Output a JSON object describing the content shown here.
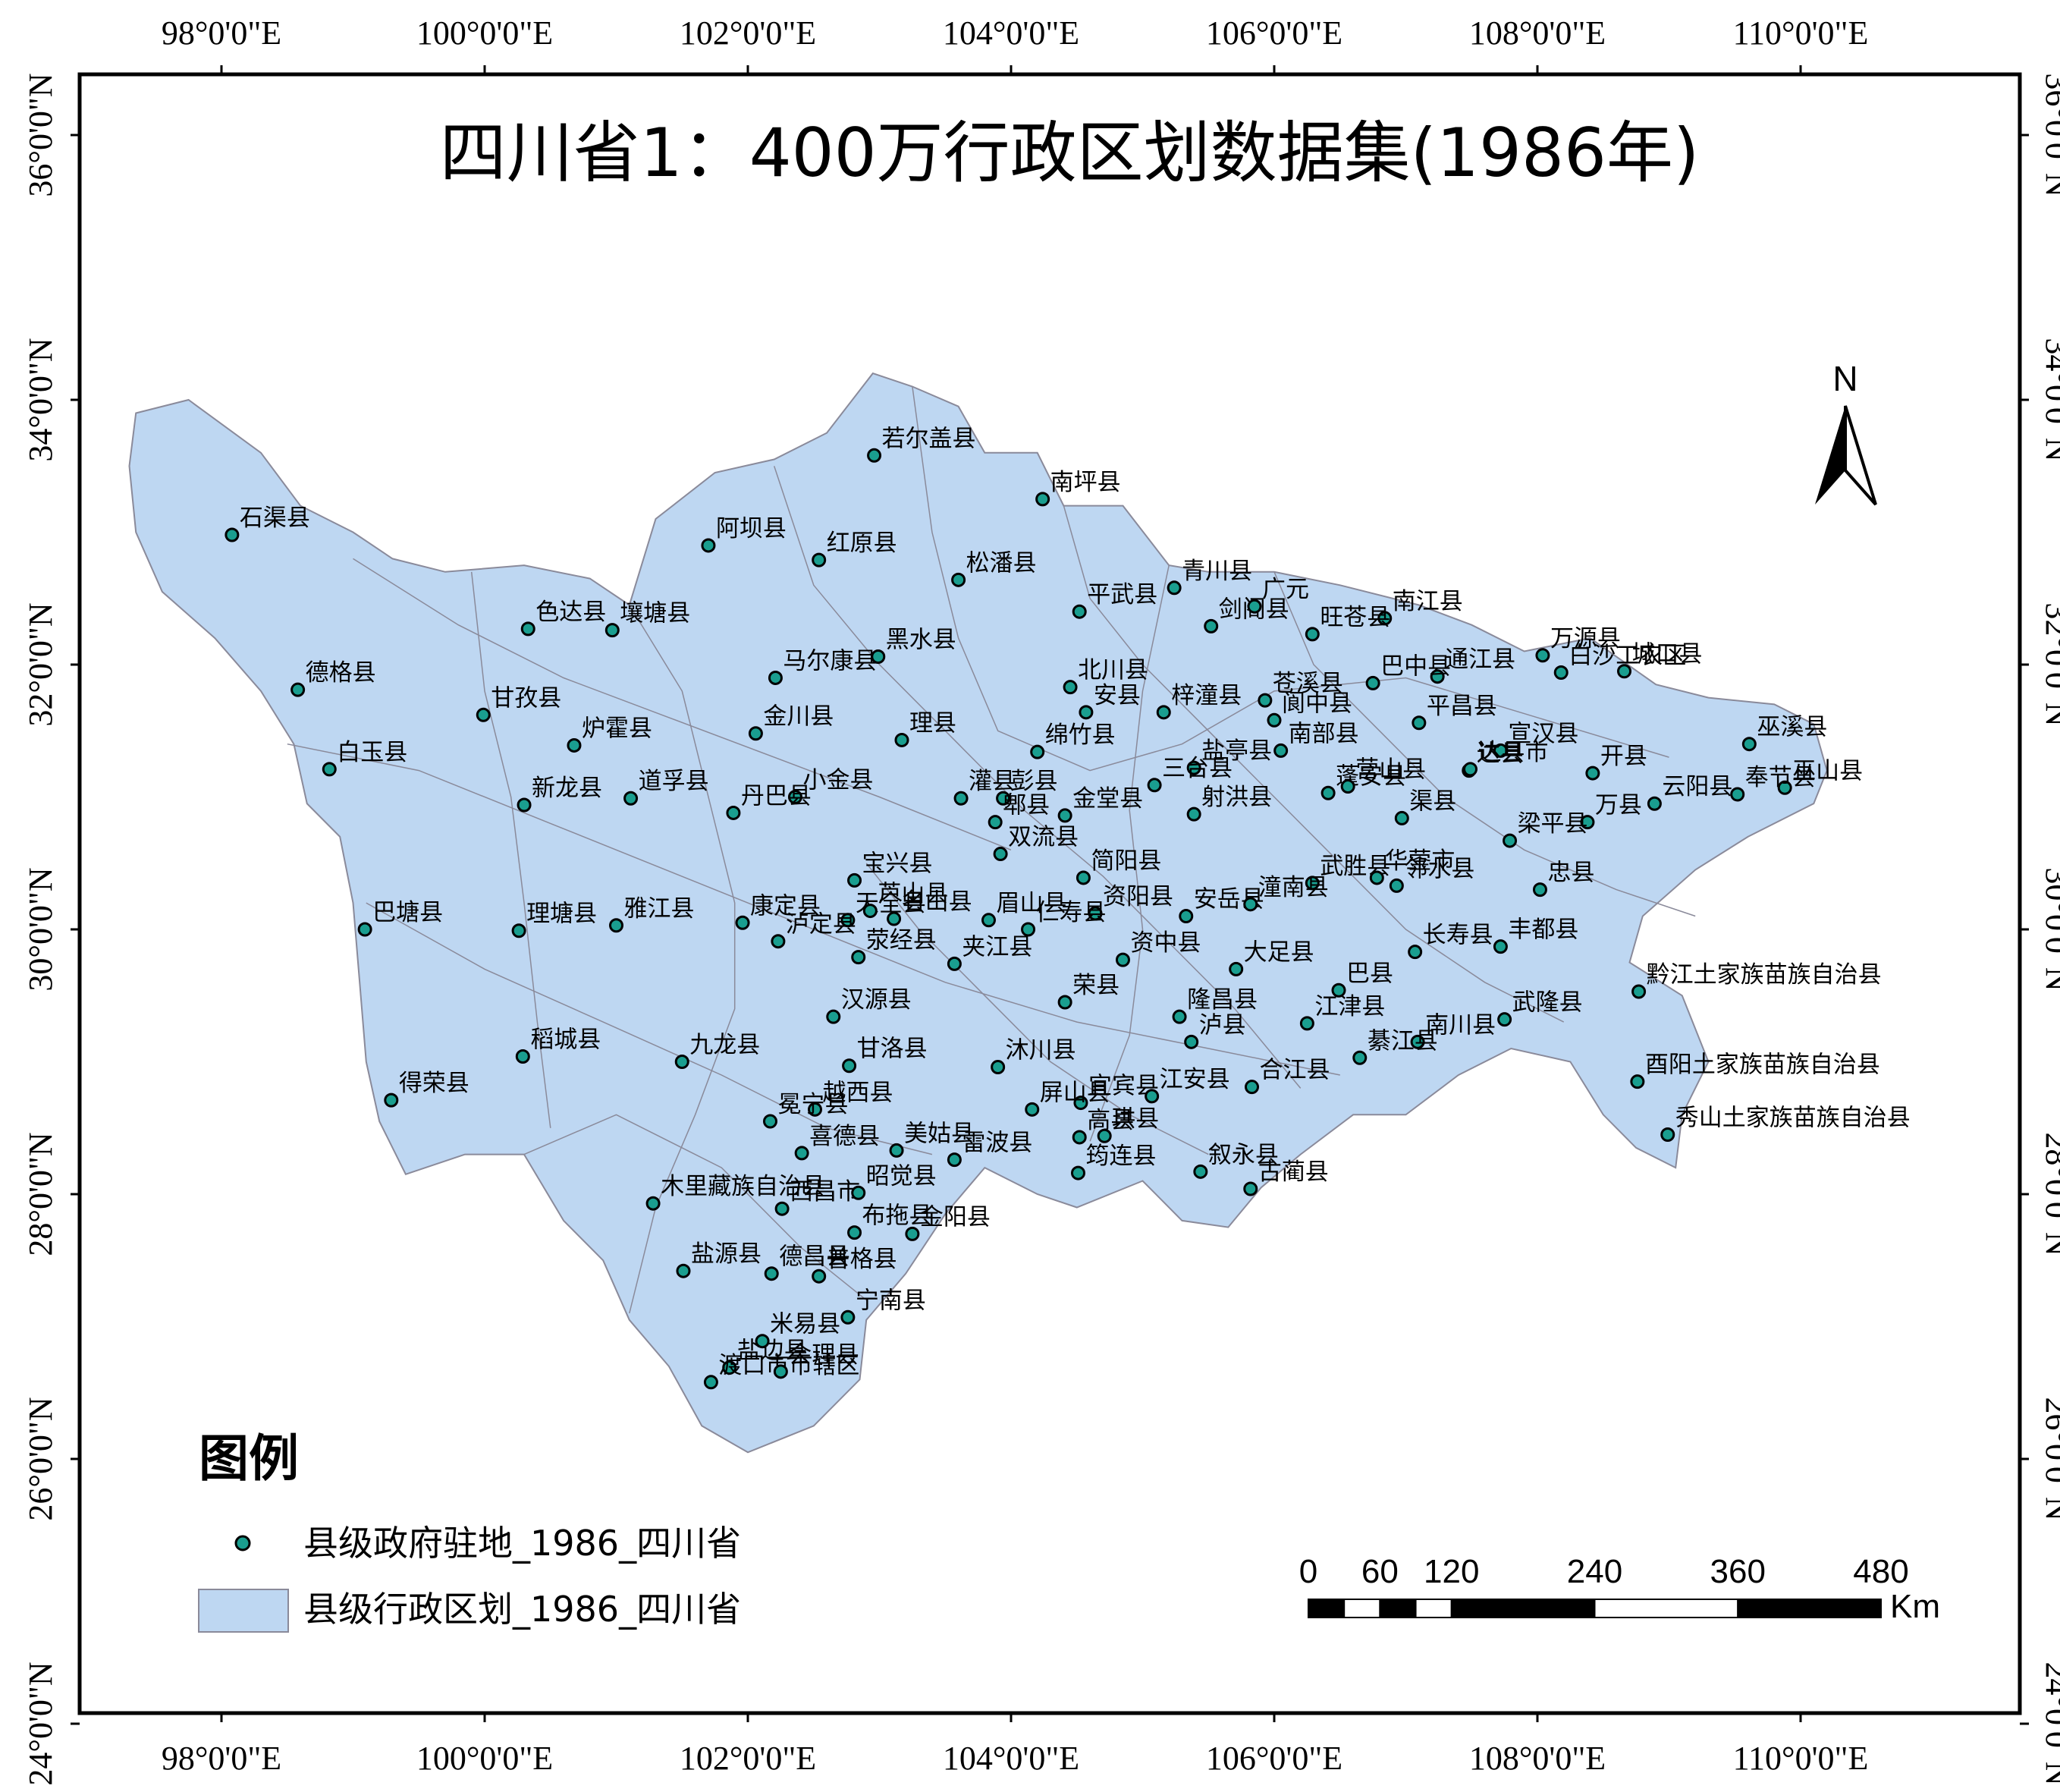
{
  "title": "四川省1：400万行政区划数据集(1986年)",
  "graticule": {
    "lon_labels": [
      "98°0'0\"E",
      "100°0'0\"E",
      "102°0'0\"E",
      "104°0'0\"E",
      "106°0'0\"E",
      "108°0'0\"E",
      "110°0'0\"E"
    ],
    "lon_values": [
      98,
      100,
      102,
      104,
      106,
      108,
      110
    ],
    "lat_labels": [
      "24°0'0\"N",
      "26°0'0\"N",
      "28°0'0\"N",
      "30°0'0\"N",
      "32°0'0\"N",
      "34°0'0\"N",
      "36°0'0\"N"
    ],
    "lat_values": [
      24,
      26,
      28,
      30,
      32,
      34,
      36
    ]
  },
  "colors": {
    "region_fill": "#bed7f2",
    "region_stroke": "#8a8a9a",
    "point_fill": "#1a9e8f",
    "point_stroke": "#000000",
    "frame": "#000000"
  },
  "legend": {
    "title": "图例",
    "items": [
      {
        "label": "县级政府驻地_1986_四川省",
        "symbol": "point"
      },
      {
        "label": "县级行政区划_1986_四川省",
        "symbol": "polygon"
      }
    ]
  },
  "scale_bar": {
    "labels": [
      "0",
      "60",
      "120",
      "240",
      "360",
      "480"
    ],
    "values_km": [
      0,
      60,
      120,
      240,
      360,
      480
    ],
    "unit": "Km"
  },
  "north_arrow": {
    "label": "N",
    "icon": "north-arrow-icon"
  },
  "counties": [
    {
      "name": "若尔盖县",
      "lon": 102.96,
      "lat": 33.58
    },
    {
      "name": "南坪县",
      "lon": 104.24,
      "lat": 33.25
    },
    {
      "name": "石渠县",
      "lon": 98.08,
      "lat": 32.98
    },
    {
      "name": "阿坝县",
      "lon": 101.7,
      "lat": 32.9
    },
    {
      "name": "红原县",
      "lon": 102.54,
      "lat": 32.79
    },
    {
      "name": "松潘县",
      "lon": 103.6,
      "lat": 32.64
    },
    {
      "name": "青川县",
      "lon": 105.24,
      "lat": 32.58
    },
    {
      "name": "平武县",
      "lon": 104.52,
      "lat": 32.4
    },
    {
      "name": "南江县",
      "lon": 106.84,
      "lat": 32.35
    },
    {
      "name": "色达县",
      "lon": 100.33,
      "lat": 32.27
    },
    {
      "name": "壤塘县",
      "lon": 100.97,
      "lat": 32.26
    },
    {
      "name": "旺苍县",
      "lon": 106.29,
      "lat": 32.23
    },
    {
      "name": "剑阁县",
      "lon": 105.52,
      "lat": 32.29
    },
    {
      "name": "黑水县",
      "lon": 102.99,
      "lat": 32.06
    },
    {
      "name": "万源县",
      "lon": 108.04,
      "lat": 32.07
    },
    {
      "name": "城口县",
      "lon": 108.66,
      "lat": 31.95
    },
    {
      "name": "通江县",
      "lon": 107.24,
      "lat": 31.91
    },
    {
      "name": "巴中县",
      "lon": 106.75,
      "lat": 31.86
    },
    {
      "name": "马尔康县",
      "lon": 102.21,
      "lat": 31.9
    },
    {
      "name": "北川县",
      "lon": 104.45,
      "lat": 31.83
    },
    {
      "name": "德格县",
      "lon": 98.58,
      "lat": 31.81
    },
    {
      "name": "白沙工农区",
      "lon": 108.18,
      "lat": 31.94
    },
    {
      "name": "广元",
      "lon": 105.85,
      "lat": 32.44
    },
    {
      "name": "安县",
      "lon": 104.57,
      "lat": 31.64
    },
    {
      "name": "梓潼县",
      "lon": 105.16,
      "lat": 31.64
    },
    {
      "name": "苍溪县",
      "lon": 105.93,
      "lat": 31.73
    },
    {
      "name": "平昌县",
      "lon": 107.1,
      "lat": 31.56
    },
    {
      "name": "甘孜县",
      "lon": 99.99,
      "lat": 31.62
    },
    {
      "name": "炉霍县",
      "lon": 100.68,
      "lat": 31.39
    },
    {
      "name": "金川县",
      "lon": 102.06,
      "lat": 31.48
    },
    {
      "name": "理县",
      "lon": 103.17,
      "lat": 31.43
    },
    {
      "name": "绵竹县",
      "lon": 104.2,
      "lat": 31.34
    },
    {
      "name": "宣汉县",
      "lon": 107.72,
      "lat": 31.35
    },
    {
      "name": "巫溪县",
      "lon": 109.61,
      "lat": 31.4
    },
    {
      "name": "达县",
      "lon": 107.48,
      "lat": 31.2
    },
    {
      "name": "盐亭县",
      "lon": 105.39,
      "lat": 31.22
    },
    {
      "name": "阆中县",
      "lon": 106.0,
      "lat": 31.58
    },
    {
      "name": "白玉县",
      "lon": 98.82,
      "lat": 31.21
    },
    {
      "name": "新龙县",
      "lon": 100.3,
      "lat": 30.94
    },
    {
      "name": "道孚县",
      "lon": 101.11,
      "lat": 30.99
    },
    {
      "name": "小金县",
      "lon": 102.36,
      "lat": 31.0
    },
    {
      "name": "灌县",
      "lon": 103.62,
      "lat": 30.99
    },
    {
      "name": "彭县",
      "lon": 103.94,
      "lat": 30.99
    },
    {
      "name": "金堂县",
      "lon": 104.41,
      "lat": 30.86
    },
    {
      "name": "三台县",
      "lon": 105.09,
      "lat": 31.09
    },
    {
      "name": "南部县",
      "lon": 106.05,
      "lat": 31.35
    },
    {
      "name": "渠县",
      "lon": 106.97,
      "lat": 30.84
    },
    {
      "name": "达县市",
      "lon": 107.49,
      "lat": 31.21
    },
    {
      "name": "开县",
      "lon": 108.42,
      "lat": 31.18
    },
    {
      "name": "云阳县",
      "lon": 108.89,
      "lat": 30.95
    },
    {
      "name": "巫山县",
      "lon": 109.88,
      "lat": 31.07
    },
    {
      "name": "奉节县",
      "lon": 109.52,
      "lat": 31.02
    },
    {
      "name": "万县",
      "lon": 108.38,
      "lat": 30.81
    },
    {
      "name": "梁平县",
      "lon": 107.79,
      "lat": 30.67
    },
    {
      "name": "丹巴县",
      "lon": 101.89,
      "lat": 30.88
    },
    {
      "name": "郫县",
      "lon": 103.88,
      "lat": 30.81
    },
    {
      "name": "双流县",
      "lon": 103.92,
      "lat": 30.57
    },
    {
      "name": "射洪县",
      "lon": 105.39,
      "lat": 30.87
    },
    {
      "name": "蓬安县",
      "lon": 106.41,
      "lat": 31.03
    },
    {
      "name": "营山县",
      "lon": 106.56,
      "lat": 31.08
    },
    {
      "name": "简阳县",
      "lon": 104.55,
      "lat": 30.39
    },
    {
      "name": "宝兴县",
      "lon": 102.81,
      "lat": 30.37
    },
    {
      "name": "武胜县",
      "lon": 106.29,
      "lat": 30.35
    },
    {
      "name": "邻水县",
      "lon": 106.93,
      "lat": 30.33
    },
    {
      "name": "忠县",
      "lon": 108.02,
      "lat": 30.3
    },
    {
      "name": "天全县",
      "lon": 102.76,
      "lat": 30.07
    },
    {
      "name": "名山县",
      "lon": 103.11,
      "lat": 30.08
    },
    {
      "name": "眉山县",
      "lon": 103.83,
      "lat": 30.07
    },
    {
      "name": "资阳县",
      "lon": 104.64,
      "lat": 30.12
    },
    {
      "name": "安岳县",
      "lon": 105.33,
      "lat": 30.1
    },
    {
      "name": "华蓥市",
      "lon": 106.78,
      "lat": 30.39
    },
    {
      "name": "巴塘县",
      "lon": 99.09,
      "lat": 30.0
    },
    {
      "name": "理塘县",
      "lon": 100.26,
      "lat": 29.99
    },
    {
      "name": "雅江县",
      "lon": 101.0,
      "lat": 30.03
    },
    {
      "name": "泸定县",
      "lon": 102.23,
      "lat": 29.91
    },
    {
      "name": "芦山县",
      "lon": 102.93,
      "lat": 30.14
    },
    {
      "name": "仁寿县",
      "lon": 104.13,
      "lat": 30.0
    },
    {
      "name": "资中县",
      "lon": 104.85,
      "lat": 29.77
    },
    {
      "name": "潼南县",
      "lon": 105.82,
      "lat": 30.19
    },
    {
      "name": "长寿县",
      "lon": 107.07,
      "lat": 29.83
    },
    {
      "name": "丰都县",
      "lon": 107.72,
      "lat": 29.87
    },
    {
      "name": "康定县",
      "lon": 101.96,
      "lat": 30.05
    },
    {
      "name": "荥经县",
      "lon": 102.84,
      "lat": 29.79
    },
    {
      "name": "夹江县",
      "lon": 103.57,
      "lat": 29.74
    },
    {
      "name": "荣县",
      "lon": 104.41,
      "lat": 29.45
    },
    {
      "name": "大足县",
      "lon": 105.71,
      "lat": 29.7
    },
    {
      "name": "黔江土家族苗族自治县",
      "lon": 108.77,
      "lat": 29.53
    },
    {
      "name": "汉源县",
      "lon": 102.65,
      "lat": 29.34
    },
    {
      "name": "隆昌县",
      "lon": 105.28,
      "lat": 29.34
    },
    {
      "name": "泸县",
      "lon": 105.37,
      "lat": 29.15
    },
    {
      "name": "江津县",
      "lon": 106.25,
      "lat": 29.29
    },
    {
      "name": "巴县",
      "lon": 106.49,
      "lat": 29.54
    },
    {
      "name": "南川县",
      "lon": 107.09,
      "lat": 29.15
    },
    {
      "name": "武隆县",
      "lon": 107.75,
      "lat": 29.32
    },
    {
      "name": "稻城县",
      "lon": 100.29,
      "lat": 29.04
    },
    {
      "name": "九龙县",
      "lon": 101.5,
      "lat": 29.0
    },
    {
      "name": "甘洛县",
      "lon": 102.77,
      "lat": 28.97
    },
    {
      "name": "沐川县",
      "lon": 103.9,
      "lat": 28.96
    },
    {
      "name": "宜宾县",
      "lon": 104.53,
      "lat": 28.69
    },
    {
      "name": "合江县",
      "lon": 105.83,
      "lat": 28.81
    },
    {
      "name": "綦江县",
      "lon": 106.65,
      "lat": 29.03
    },
    {
      "name": "酉阳土家族苗族自治县",
      "lon": 108.76,
      "lat": 28.85
    },
    {
      "name": "得荣县",
      "lon": 99.29,
      "lat": 28.71
    },
    {
      "name": "越西县",
      "lon": 102.51,
      "lat": 28.64
    },
    {
      "name": "冕宁县",
      "lon": 102.17,
      "lat": 28.55
    },
    {
      "name": "喜德县",
      "lon": 102.41,
      "lat": 28.31
    },
    {
      "name": "美姑县",
      "lon": 103.13,
      "lat": 28.33
    },
    {
      "name": "屏山县",
      "lon": 104.16,
      "lat": 28.64
    },
    {
      "name": "高县",
      "lon": 104.52,
      "lat": 28.43
    },
    {
      "name": "江安县",
      "lon": 105.07,
      "lat": 28.74
    },
    {
      "name": "秀山土家族苗族自治县",
      "lon": 108.99,
      "lat": 28.45
    },
    {
      "name": "珙县",
      "lon": 104.71,
      "lat": 28.44
    },
    {
      "name": "叙永县",
      "lon": 105.44,
      "lat": 28.17
    },
    {
      "name": "木里藏族自治县",
      "lon": 101.28,
      "lat": 27.93
    },
    {
      "name": "西昌市",
      "lon": 102.26,
      "lat": 27.89
    },
    {
      "name": "昭觉县",
      "lon": 102.84,
      "lat": 28.01
    },
    {
      "name": "雷波县",
      "lon": 103.57,
      "lat": 28.26
    },
    {
      "name": "筠连县",
      "lon": 104.51,
      "lat": 28.16
    },
    {
      "name": "古蔺县",
      "lon": 105.82,
      "lat": 28.04
    },
    {
      "name": "布拖县",
      "lon": 102.81,
      "lat": 27.71
    },
    {
      "name": "金阳县",
      "lon": 103.25,
      "lat": 27.7
    },
    {
      "name": "盐源县",
      "lon": 101.51,
      "lat": 27.42
    },
    {
      "name": "普格县",
      "lon": 102.54,
      "lat": 27.38
    },
    {
      "name": "德昌县",
      "lon": 102.18,
      "lat": 27.4
    },
    {
      "name": "宁南县",
      "lon": 102.76,
      "lat": 27.07
    },
    {
      "name": "盐边县",
      "lon": 101.86,
      "lat": 26.69
    },
    {
      "name": "渡口市市辖区",
      "lon": 101.72,
      "lat": 26.58
    },
    {
      "name": "米易县",
      "lon": 102.11,
      "lat": 26.89
    },
    {
      "name": "会理县",
      "lon": 102.25,
      "lat": 26.66
    }
  ]
}
